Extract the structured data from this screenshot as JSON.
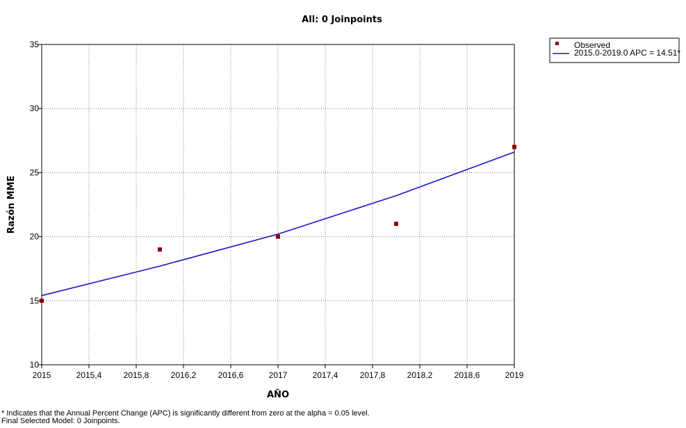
{
  "chart_data": {
    "type": "scatter",
    "title": "All: 0 Joinpoints",
    "xlabel": "AÑO",
    "ylabel": "Razón MME",
    "xlim": [
      2015,
      2019
    ],
    "ylim": [
      10,
      35
    ],
    "x_ticks": [
      2015,
      2015.4,
      2015.8,
      2016.2,
      2016.6,
      2017,
      2017.4,
      2017.8,
      2018.2,
      2018.6,
      2019
    ],
    "x_tick_labels": [
      "2015",
      "2015,4",
      "2015,8",
      "2016,2",
      "2016,6",
      "2017",
      "2017,4",
      "2017,8",
      "2018,2",
      "2018,6",
      "2019"
    ],
    "y_ticks": [
      10,
      15,
      20,
      25,
      30,
      35
    ],
    "y_tick_labels": [
      "10",
      "15",
      "20",
      "25",
      "30",
      "35"
    ],
    "grid": true,
    "legend_position": "top-right",
    "series": [
      {
        "name": "Observed",
        "kind": "markers",
        "color": "#8b0000",
        "x": [
          2015,
          2016,
          2017,
          2018,
          2019
        ],
        "y": [
          15,
          19,
          20,
          21,
          27
        ]
      },
      {
        "name": "2015.0-2019.0 APC  = 14.51*",
        "kind": "line",
        "color": "#1515c8",
        "x": [
          2015,
          2016,
          2017,
          2018,
          2019
        ],
        "y": [
          15.4,
          17.7,
          20.2,
          23.2,
          26.6
        ]
      }
    ]
  },
  "footnote": {
    "line1": "* Indicates that the Annual Percent Change (APC) is significantly different from zero at the alpha = 0.05 level.",
    "line2": "Final Selected Model: 0 Joinpoints."
  }
}
